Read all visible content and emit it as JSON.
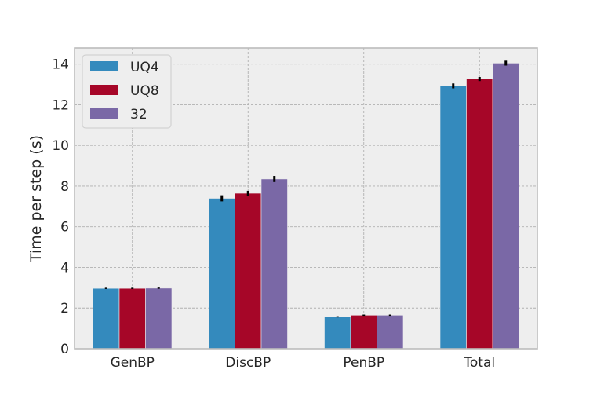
{
  "chart_data": {
    "type": "bar",
    "categories": [
      "GenBP",
      "DiscBP",
      "PenBP",
      "Total"
    ],
    "series": [
      {
        "name": "UQ4",
        "color": "#348abd",
        "values": [
          2.97,
          7.4,
          1.57,
          12.93
        ],
        "errors": [
          0.03,
          0.15,
          0.03,
          0.12
        ]
      },
      {
        "name": "UQ8",
        "color": "#a60628",
        "values": [
          2.97,
          7.65,
          1.65,
          13.27
        ],
        "errors": [
          0.03,
          0.12,
          0.03,
          0.1
        ]
      },
      {
        "name": "32",
        "color": "#7a68a6",
        "values": [
          2.98,
          8.35,
          1.65,
          14.05
        ],
        "errors": [
          0.03,
          0.15,
          0.03,
          0.12
        ]
      }
    ],
    "xlabel": "",
    "ylabel": "Time per step (s)",
    "ylim": [
      0,
      14.8
    ],
    "yticks": [
      0,
      2,
      4,
      6,
      8,
      10,
      12,
      14
    ],
    "grid": true,
    "legend_position": "top-left",
    "style_colors": {
      "plot_background": "#eeeeee",
      "grid": "#b0b0b0",
      "frame": "#bcbcbc",
      "errorbar": "#000000"
    }
  }
}
